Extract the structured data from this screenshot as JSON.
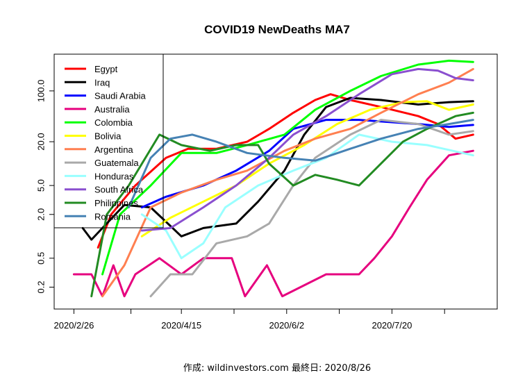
{
  "chart_data": {
    "type": "line",
    "title": "COVID19 NewDeaths MA7",
    "caption": "作成: wildinvestors.com 最終日: 2020/8/26",
    "xlabel": "",
    "ylabel": "",
    "y_scale": "log",
    "ylim": [
      0.1,
      320
    ],
    "xlim": [
      "2020-02-17",
      "2020-09-06"
    ],
    "x_ticks": [
      "2020-02-26",
      "2020-03-23",
      "2020-04-15",
      "2020-05-09",
      "2020-06-02",
      "2020-06-26",
      "2020-07-20",
      "2020-08-13"
    ],
    "x_tick_labels": [
      {
        "date": "2020-02-26",
        "label": "2020/2/26"
      },
      {
        "date": "2020-04-15",
        "label": "2020/4/15"
      },
      {
        "date": "2020-06-02",
        "label": "2020/6/2"
      },
      {
        "date": "2020-07-20",
        "label": "2020/7/20"
      }
    ],
    "y_ticks": [
      0.2,
      0.5,
      2.0,
      5.0,
      20.0,
      100.0
    ],
    "y_tick_labels": [
      "0.2",
      "0.5",
      "2.0",
      "5.0",
      "20.0",
      "100.0"
    ],
    "legend_position": "top-left",
    "series": [
      {
        "name": "Egypt",
        "color": "#FF0000",
        "points": [
          [
            "2020-03-08",
            0.7
          ],
          [
            "2020-03-14",
            2.0
          ],
          [
            "2020-03-25",
            5
          ],
          [
            "2020-04-08",
            12
          ],
          [
            "2020-04-18",
            16
          ],
          [
            "2020-05-01",
            16
          ],
          [
            "2020-05-15",
            20
          ],
          [
            "2020-05-25",
            30
          ],
          [
            "2020-06-05",
            50
          ],
          [
            "2020-06-15",
            75
          ],
          [
            "2020-06-22",
            90
          ],
          [
            "2020-07-01",
            75
          ],
          [
            "2020-07-15",
            60
          ],
          [
            "2020-08-01",
            45
          ],
          [
            "2020-08-10",
            35
          ],
          [
            "2020-08-18",
            22
          ],
          [
            "2020-08-26",
            25
          ]
        ]
      },
      {
        "name": "Iraq",
        "color": "#000000",
        "points": [
          [
            "2020-03-01",
            1.3
          ],
          [
            "2020-03-05",
            0.9
          ],
          [
            "2020-03-10",
            1.3
          ],
          [
            "2020-03-20",
            2.7
          ],
          [
            "2020-04-01",
            2.5
          ],
          [
            "2020-04-15",
            1.0
          ],
          [
            "2020-04-25",
            1.3
          ],
          [
            "2020-05-10",
            1.5
          ],
          [
            "2020-05-20",
            3
          ],
          [
            "2020-06-01",
            8
          ],
          [
            "2020-06-10",
            25
          ],
          [
            "2020-06-20",
            60
          ],
          [
            "2020-07-01",
            80
          ],
          [
            "2020-07-15",
            75
          ],
          [
            "2020-08-01",
            65
          ],
          [
            "2020-08-15",
            70
          ],
          [
            "2020-08-26",
            72
          ]
        ]
      },
      {
        "name": "Saudi Arabia",
        "color": "#0000FF",
        "points": [
          [
            "2020-03-28",
            2.5
          ],
          [
            "2020-04-08",
            3.5
          ],
          [
            "2020-04-25",
            5
          ],
          [
            "2020-05-10",
            8
          ],
          [
            "2020-05-25",
            15
          ],
          [
            "2020-06-05",
            30
          ],
          [
            "2020-06-20",
            40
          ],
          [
            "2020-07-05",
            40
          ],
          [
            "2020-07-15",
            38
          ],
          [
            "2020-08-01",
            35
          ],
          [
            "2020-08-15",
            32
          ],
          [
            "2020-08-26",
            34
          ]
        ]
      },
      {
        "name": "Australia",
        "color": "#E6007E",
        "points": [
          [
            "2020-02-26",
            0.3
          ],
          [
            "2020-03-05",
            0.3
          ],
          [
            "2020-03-10",
            0.15
          ],
          [
            "2020-03-15",
            0.4
          ],
          [
            "2020-03-20",
            0.15
          ],
          [
            "2020-03-25",
            0.3
          ],
          [
            "2020-04-05",
            0.5
          ],
          [
            "2020-04-15",
            0.3
          ],
          [
            "2020-04-25",
            0.5
          ],
          [
            "2020-05-08",
            0.5
          ],
          [
            "2020-05-14",
            0.15
          ],
          [
            "2020-05-24",
            0.4
          ],
          [
            "2020-05-31",
            0.15
          ],
          [
            "2020-06-20",
            0.3
          ],
          [
            "2020-06-26",
            0.3
          ],
          [
            "2020-07-05",
            0.3
          ],
          [
            "2020-07-12",
            0.5
          ],
          [
            "2020-07-20",
            1.0
          ],
          [
            "2020-07-28",
            2.5
          ],
          [
            "2020-08-05",
            6
          ],
          [
            "2020-08-15",
            13
          ],
          [
            "2020-08-26",
            15
          ]
        ]
      },
      {
        "name": "Colombia",
        "color": "#00FF00",
        "points": [
          [
            "2020-03-10",
            0.3
          ],
          [
            "2020-03-18",
            2
          ],
          [
            "2020-04-01",
            5
          ],
          [
            "2020-04-15",
            14
          ],
          [
            "2020-05-01",
            14
          ],
          [
            "2020-05-15",
            18
          ],
          [
            "2020-06-01",
            25
          ],
          [
            "2020-06-15",
            55
          ],
          [
            "2020-07-01",
            100
          ],
          [
            "2020-07-15",
            160
          ],
          [
            "2020-08-01",
            230
          ],
          [
            "2020-08-15",
            260
          ],
          [
            "2020-08-26",
            250
          ]
        ]
      },
      {
        "name": "Bolivia",
        "color": "#FFFF00",
        "points": [
          [
            "2020-03-28",
            1
          ],
          [
            "2020-04-10",
            1.8
          ],
          [
            "2020-04-25",
            3
          ],
          [
            "2020-05-10",
            5
          ],
          [
            "2020-05-25",
            10
          ],
          [
            "2020-06-10",
            18
          ],
          [
            "2020-06-25",
            35
          ],
          [
            "2020-07-10",
            55
          ],
          [
            "2020-07-25",
            70
          ],
          [
            "2020-08-05",
            72
          ],
          [
            "2020-08-15",
            55
          ],
          [
            "2020-08-26",
            65
          ]
        ]
      },
      {
        "name": "Argentina",
        "color": "#FF7F50",
        "points": [
          [
            "2020-03-10",
            0.15
          ],
          [
            "2020-03-20",
            0.4
          ],
          [
            "2020-04-01",
            2.5
          ],
          [
            "2020-04-15",
            4
          ],
          [
            "2020-05-01",
            6
          ],
          [
            "2020-05-15",
            8
          ],
          [
            "2020-06-01",
            15
          ],
          [
            "2020-06-15",
            22
          ],
          [
            "2020-07-01",
            30
          ],
          [
            "2020-07-15",
            50
          ],
          [
            "2020-08-01",
            90
          ],
          [
            "2020-08-15",
            130
          ],
          [
            "2020-08-26",
            200
          ]
        ]
      },
      {
        "name": "Guatemala",
        "color": "#A9A9A9",
        "points": [
          [
            "2020-04-01",
            0.15
          ],
          [
            "2020-04-10",
            0.3
          ],
          [
            "2020-04-20",
            0.3
          ],
          [
            "2020-05-01",
            0.8
          ],
          [
            "2020-05-15",
            1.0
          ],
          [
            "2020-05-25",
            1.5
          ],
          [
            "2020-06-05",
            5
          ],
          [
            "2020-06-15",
            12
          ],
          [
            "2020-07-01",
            25
          ],
          [
            "2020-07-15",
            40
          ],
          [
            "2020-08-01",
            35
          ],
          [
            "2020-08-15",
            25
          ],
          [
            "2020-08-26",
            28
          ]
        ]
      },
      {
        "name": "Honduras",
        "color": "#99FFFF",
        "points": [
          [
            "2020-03-28",
            2
          ],
          [
            "2020-04-08",
            1.2
          ],
          [
            "2020-04-15",
            0.5
          ],
          [
            "2020-04-25",
            0.8
          ],
          [
            "2020-05-05",
            2.5
          ],
          [
            "2020-05-20",
            5
          ],
          [
            "2020-06-05",
            8
          ],
          [
            "2020-06-20",
            12
          ],
          [
            "2020-07-05",
            25
          ],
          [
            "2020-07-20",
            20
          ],
          [
            "2020-08-05",
            18
          ],
          [
            "2020-08-26",
            13
          ]
        ]
      },
      {
        "name": "South Africa",
        "color": "#8A4FCF",
        "points": [
          [
            "2020-03-28",
            1.2
          ],
          [
            "2020-04-10",
            1.3
          ],
          [
            "2020-04-25",
            2.5
          ],
          [
            "2020-05-10",
            5
          ],
          [
            "2020-05-25",
            12
          ],
          [
            "2020-06-05",
            25
          ],
          [
            "2020-06-20",
            45
          ],
          [
            "2020-07-05",
            90
          ],
          [
            "2020-07-20",
            170
          ],
          [
            "2020-08-01",
            200
          ],
          [
            "2020-08-10",
            190
          ],
          [
            "2020-08-18",
            150
          ],
          [
            "2020-08-26",
            140
          ]
        ]
      },
      {
        "name": "Philippines",
        "color": "#228B22",
        "points": [
          [
            "2020-03-05",
            0.15
          ],
          [
            "2020-03-12",
            2
          ],
          [
            "2020-03-22",
            5
          ],
          [
            "2020-04-05",
            25
          ],
          [
            "2020-04-15",
            18
          ],
          [
            "2020-04-28",
            15
          ],
          [
            "2020-05-10",
            18
          ],
          [
            "2020-05-20",
            18
          ],
          [
            "2020-05-25",
            10
          ],
          [
            "2020-06-05",
            5
          ],
          [
            "2020-06-15",
            7
          ],
          [
            "2020-06-25",
            6
          ],
          [
            "2020-07-05",
            5
          ],
          [
            "2020-07-15",
            10
          ],
          [
            "2020-07-25",
            20
          ],
          [
            "2020-08-05",
            30
          ],
          [
            "2020-08-18",
            45
          ],
          [
            "2020-08-26",
            50
          ]
        ]
      },
      {
        "name": "Romania",
        "color": "#4682B4",
        "points": [
          [
            "2020-03-22",
            2.5
          ],
          [
            "2020-04-01",
            12
          ],
          [
            "2020-04-10",
            22
          ],
          [
            "2020-04-20",
            25
          ],
          [
            "2020-05-01",
            20
          ],
          [
            "2020-05-15",
            14
          ],
          [
            "2020-06-01",
            12
          ],
          [
            "2020-06-15",
            11
          ],
          [
            "2020-07-01",
            16
          ],
          [
            "2020-07-15",
            22
          ],
          [
            "2020-08-01",
            30
          ],
          [
            "2020-08-15",
            35
          ],
          [
            "2020-08-26",
            40
          ]
        ]
      }
    ]
  }
}
